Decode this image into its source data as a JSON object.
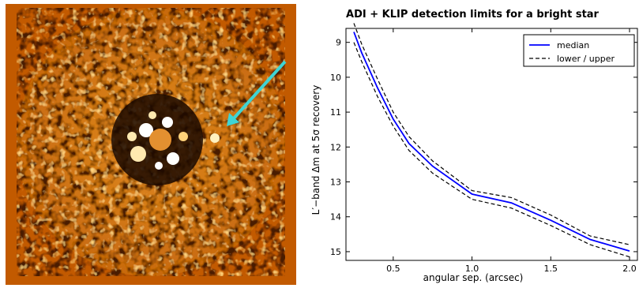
{
  "image_panel": {
    "background_color": "#c25a00",
    "arrow_color": "#3fd4d4",
    "content": "ADI + KLIP residual image with companion indicated"
  },
  "chart_data": {
    "type": "line",
    "title": "ADI + KLIP detection limits for a bright star",
    "xlabel": "angular sep. (arcsec)",
    "ylabel": "L′−band Δm at 5σ recovery",
    "xlim": [
      0.2,
      2.05
    ],
    "ylim": [
      15.25,
      8.6
    ],
    "y_inverted": true,
    "xticks": [
      0.5,
      1.0,
      1.5,
      2.0
    ],
    "xtick_labels": [
      "0.5",
      "1.0",
      "1.5",
      "2.0"
    ],
    "yticks": [
      9,
      10,
      11,
      12,
      13,
      14,
      15
    ],
    "ytick_labels": [
      "9",
      "10",
      "11",
      "12",
      "13",
      "14",
      "15"
    ],
    "legend_position": "top-right",
    "grid": false,
    "series": [
      {
        "name": "median",
        "color": "#0000ff",
        "style": "solid",
        "x": [
          0.25,
          0.3,
          0.4,
          0.5,
          0.6,
          0.75,
          1.0,
          1.25,
          1.5,
          1.75,
          2.0
        ],
        "y": [
          8.7,
          9.3,
          10.3,
          11.2,
          11.9,
          12.55,
          13.35,
          13.6,
          14.1,
          14.65,
          14.98
        ]
      },
      {
        "name": "lower / upper",
        "color": "#000000",
        "style": "dashed",
        "x": [
          0.25,
          0.3,
          0.4,
          0.5,
          0.6,
          0.75,
          1.0,
          1.25,
          1.5,
          1.75,
          2.0
        ],
        "y": [
          8.45,
          9.05,
          10.05,
          11.0,
          11.7,
          12.4,
          13.25,
          13.45,
          13.95,
          14.55,
          14.8
        ]
      },
      {
        "name": "",
        "color": "#000000",
        "style": "dashed",
        "x": [
          0.25,
          0.3,
          0.4,
          0.5,
          0.6,
          0.75,
          1.0,
          1.25,
          1.5,
          1.75,
          2.0
        ],
        "y": [
          9.0,
          9.55,
          10.55,
          11.4,
          12.1,
          12.75,
          13.5,
          13.75,
          14.25,
          14.8,
          15.15
        ]
      }
    ]
  }
}
